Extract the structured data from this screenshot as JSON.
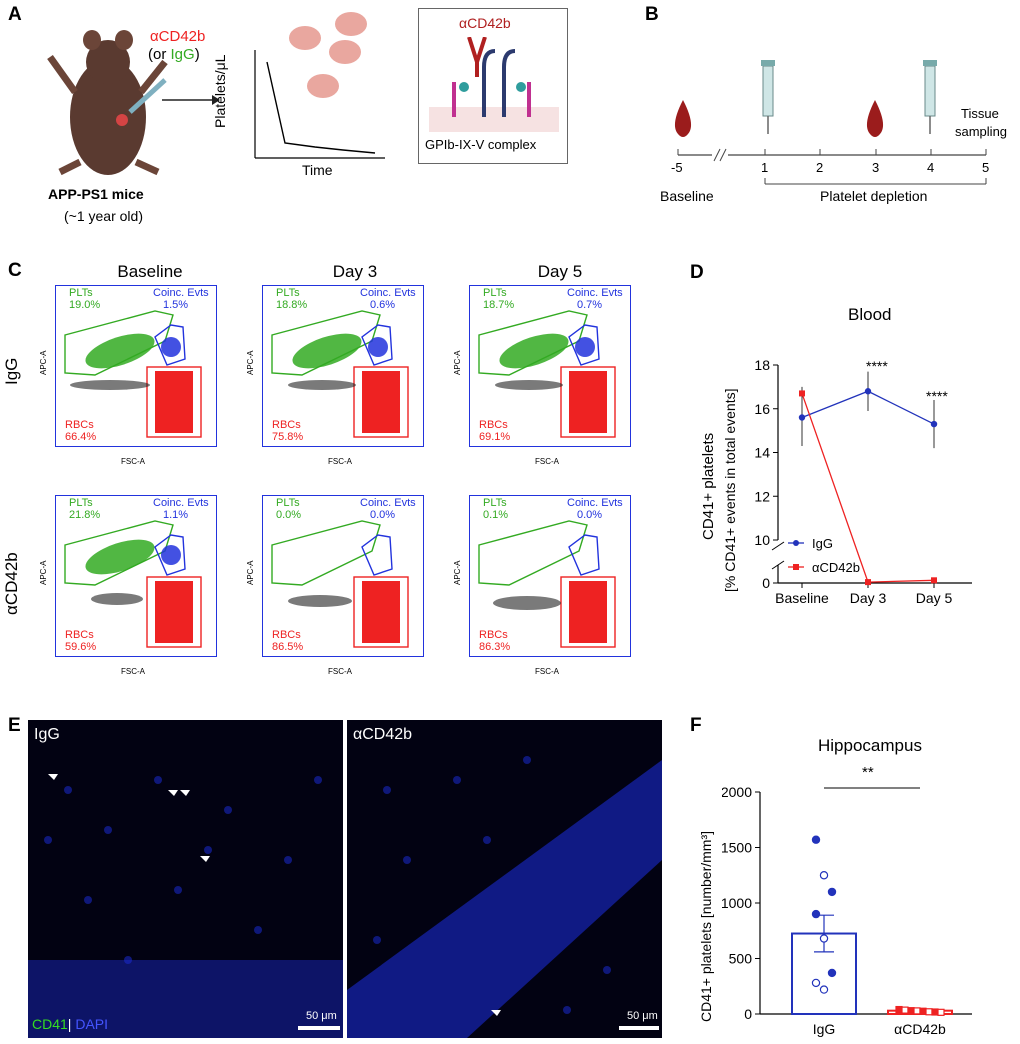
{
  "panels": {
    "A": {
      "letter": "A",
      "antibody_label": "αCD42b",
      "or_igg_open": "(or ",
      "or_igg_word": "IgG",
      "or_igg_close": ")",
      "mouse_name": "APP-PS1 mice",
      "mouse_age": "(~1 year old)",
      "plot_ylabel": "Platelets/μL",
      "plot_xlabel": "Time",
      "inset_antibody": "αCD42b",
      "inset_complex": "GPIb-IX-V complex"
    },
    "B": {
      "letter": "B",
      "ticks": [
        "-5",
        "1",
        "2",
        "3",
        "4",
        "5"
      ],
      "baseline_label": "Baseline",
      "depletion_label": "Platelet depletion",
      "tissue_label_1": "Tissue",
      "tissue_label_2": "sampling"
    },
    "C": {
      "letter": "C",
      "columns": [
        "Baseline",
        "Day 3",
        "Day 5"
      ],
      "rows": [
        "IgG",
        "αCD42b"
      ],
      "gate_plts": "PLTs",
      "gate_coinc": "Coinc. Evts",
      "gate_rbcs": "RBCs",
      "y_axis_label": "APC-A",
      "x_axis_label": "FSC-A",
      "plots": [
        {
          "plts": "19.0%",
          "coinc": "1.5%",
          "rbcs": "66.4%"
        },
        {
          "plts": "18.8%",
          "coinc": "0.6%",
          "rbcs": "75.8%"
        },
        {
          "plts": "18.7%",
          "coinc": "0.7%",
          "rbcs": "69.1%"
        },
        {
          "plts": "21.8%",
          "coinc": "1.1%",
          "rbcs": "59.6%"
        },
        {
          "plts": "0.0%",
          "coinc": "0.0%",
          "rbcs": "86.5%"
        },
        {
          "plts": "0.1%",
          "coinc": "0.0%",
          "rbcs": "86.3%"
        }
      ]
    },
    "D": {
      "letter": "D",
      "title": "Blood",
      "ylabel_1": "CD41+ platelets",
      "ylabel_2": "[% CD41+ events in total events]",
      "significance": [
        "****",
        "****"
      ]
    },
    "E": {
      "letter": "E",
      "left_label": "IgG",
      "right_label": "αCD42b",
      "stain_cd41": "CD41",
      "stain_sep": "|",
      "stain_dapi": "DAPI",
      "scale_left": "50 μm",
      "scale_right": "50 μm"
    },
    "F": {
      "letter": "F",
      "title": "Hippocampus",
      "ylabel": "CD41+ platelets [number/mm³]",
      "significance": "**"
    }
  },
  "colors": {
    "igg": "#2233bb",
    "acd42b": "#ee2222",
    "blood": "#9b1c1c",
    "gate_green": "#33aa22",
    "gate_blue": "#2233dd",
    "gate_red": "#ee2222"
  },
  "chart_data": [
    {
      "type": "line",
      "panel": "D",
      "title": "Blood",
      "categories": [
        "Baseline",
        "Day 3",
        "Day 5"
      ],
      "yticks": [
        "0",
        "10",
        "12",
        "14",
        "16",
        "18"
      ],
      "series": [
        {
          "name": "IgG",
          "values": [
            15.6,
            16.8,
            15.3
          ],
          "errors": [
            1.3,
            0.9,
            1.1
          ],
          "color": "#2233bb"
        },
        {
          "name": "αCD42b",
          "values": [
            16.7,
            0.05,
            0.15
          ],
          "errors": [
            0.3,
            0.02,
            0.02
          ],
          "color": "#ee2222"
        }
      ],
      "ylabel": "CD41+ platelets [% CD41+ events in total events]",
      "ylim_break": [
        0,
        10,
        18
      ]
    },
    {
      "type": "bar",
      "panel": "F",
      "title": "Hippocampus",
      "categories": [
        "IgG",
        "αCD42b"
      ],
      "values": [
        725,
        30
      ],
      "sem": [
        165,
        5
      ],
      "yticks": [
        "0",
        "500",
        "1000",
        "1500",
        "2000"
      ],
      "ylim": [
        0,
        2000
      ],
      "points": [
        {
          "group": 0,
          "values": [
            1570,
            1250,
            1100,
            900,
            680,
            370,
            280,
            220
          ],
          "filled": [
            true,
            false,
            true,
            true,
            false,
            true,
            false,
            false
          ]
        },
        {
          "group": 1,
          "values": [
            40,
            35,
            30,
            28,
            25,
            20,
            18,
            15
          ],
          "filled": [
            true,
            false,
            true,
            false,
            true,
            false,
            true,
            false
          ]
        }
      ],
      "ylabel": "CD41+ platelets [number/mm³]"
    }
  ]
}
